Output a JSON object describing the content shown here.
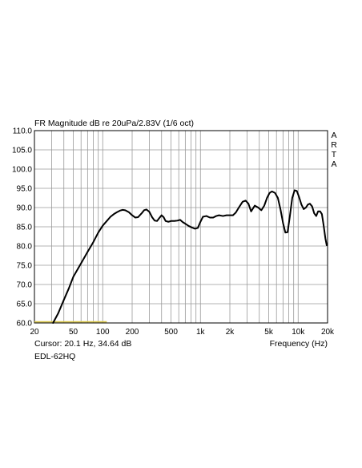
{
  "chart_data": {
    "type": "line",
    "title": "FR Magnitude dB re 20uPa/2.83V (1/6 oct)",
    "xlabel": "Frequency (Hz)",
    "ylabel": "",
    "x_scale": "log",
    "xlim": [
      20,
      20000
    ],
    "ylim": [
      60,
      110
    ],
    "grid": true,
    "x_tick_labels": [
      {
        "value": 20,
        "label": "20"
      },
      {
        "value": 50,
        "label": "50"
      },
      {
        "value": 100,
        "label": "100"
      },
      {
        "value": 200,
        "label": "200"
      },
      {
        "value": 500,
        "label": "500"
      },
      {
        "value": 1000,
        "label": "1k"
      },
      {
        "value": 2000,
        "label": "2k"
      },
      {
        "value": 5000,
        "label": "5k"
      },
      {
        "value": 10000,
        "label": "10k"
      },
      {
        "value": 20000,
        "label": "20k"
      }
    ],
    "y_tick_labels": [
      {
        "value": 110,
        "label": "110.0"
      },
      {
        "value": 105,
        "label": "105.0"
      },
      {
        "value": 100,
        "label": "100.0"
      },
      {
        "value": 95,
        "label": "95.0"
      },
      {
        "value": 90,
        "label": "90.0"
      },
      {
        "value": 85,
        "label": "85.0"
      },
      {
        "value": 80,
        "label": "80.0"
      },
      {
        "value": 75,
        "label": "75.0"
      },
      {
        "value": 70,
        "label": "70.0"
      },
      {
        "value": 65,
        "label": "65.0"
      },
      {
        "value": 60,
        "label": "60.0"
      }
    ],
    "series": [
      {
        "color": "#000000",
        "x": [
          31,
          35,
          40,
          45,
          50,
          60,
          70,
          80,
          90,
          100,
          110,
          120,
          130,
          140,
          150,
          160,
          170,
          185,
          200,
          215,
          230,
          250,
          265,
          280,
          300,
          320,
          340,
          360,
          380,
          400,
          420,
          440,
          470,
          500,
          540,
          580,
          620,
          660,
          700,
          760,
          820,
          880,
          940,
          1000,
          1060,
          1150,
          1250,
          1350,
          1450,
          1550,
          1700,
          1850,
          2000,
          2150,
          2300,
          2500,
          2700,
          2900,
          3100,
          3300,
          3600,
          3900,
          4200,
          4500,
          4800,
          5100,
          5400,
          5800,
          6200,
          6600,
          7000,
          7400,
          7800,
          8200,
          8700,
          9200,
          9700,
          10200,
          10800,
          11400,
          12000,
          12600,
          13200,
          13900,
          14600,
          15300,
          16000,
          16800,
          17500,
          18200,
          19000,
          19600
        ],
        "y": [
          60.0,
          62.5,
          66.0,
          69.0,
          72.0,
          75.5,
          78.5,
          81.0,
          83.5,
          85.3,
          86.5,
          87.6,
          88.3,
          88.8,
          89.2,
          89.4,
          89.3,
          88.8,
          88.0,
          87.4,
          87.5,
          88.5,
          89.3,
          89.5,
          88.9,
          87.5,
          86.6,
          86.5,
          87.3,
          88.0,
          87.5,
          86.5,
          86.3,
          86.5,
          86.5,
          86.6,
          86.8,
          86.2,
          85.8,
          85.2,
          84.8,
          84.5,
          84.7,
          86.3,
          87.6,
          87.8,
          87.4,
          87.4,
          87.8,
          88.0,
          87.8,
          88.0,
          88.0,
          88.0,
          88.7,
          90.2,
          91.5,
          91.8,
          91.0,
          89.0,
          90.5,
          90.0,
          89.3,
          90.5,
          92.5,
          93.8,
          94.2,
          93.8,
          92.5,
          89.5,
          86.0,
          83.5,
          83.6,
          87.5,
          92.5,
          94.5,
          94.3,
          92.8,
          90.8,
          89.6,
          90.0,
          90.8,
          91.0,
          90.3,
          88.5,
          87.8,
          89.0,
          89.0,
          88.3,
          85.5,
          82.0,
          80.2
        ]
      }
    ],
    "marker_line": {
      "color": "#d8c64a",
      "x": [
        20,
        110
      ],
      "y": 60.3
    }
  },
  "cursor_text": "Cursor: 20.1 Hz, 34.64 dB",
  "label_text": "EDL-62HQ",
  "arta_letters": [
    "A",
    "R",
    "T",
    "A"
  ]
}
